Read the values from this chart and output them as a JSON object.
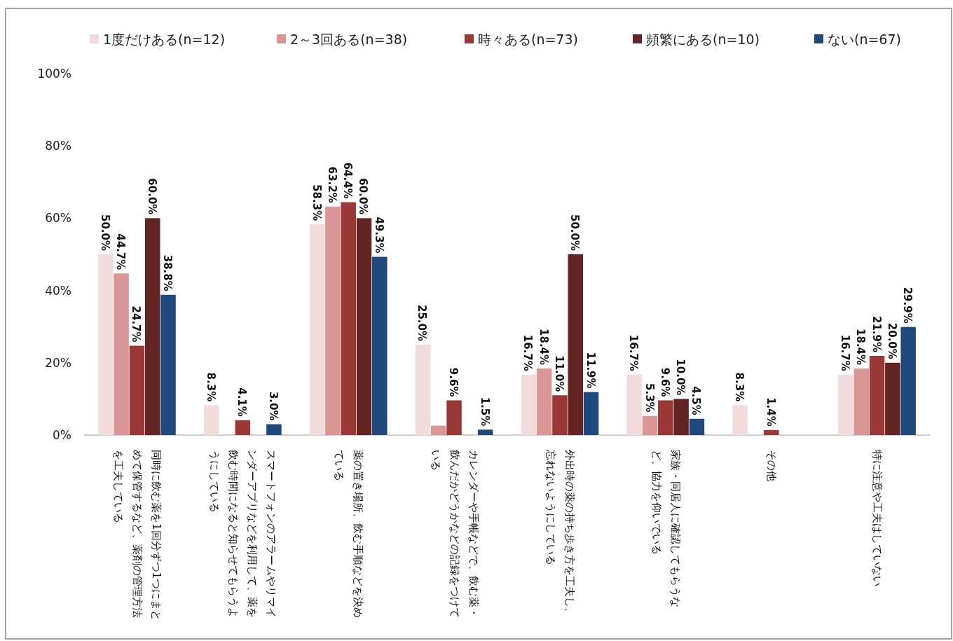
{
  "chart_data": {
    "type": "bar",
    "categories": [
      "同時に飲む薬を1回分ずつ1つにまとめて保管するなど、薬剤の管理方法を工夫している",
      "スマートフォンのアラームやリマインダーアプリなどを利用して、薬を飲む時間になると知らせてもらうようにしている",
      "薬の置き場所、飲む手順などを決めている",
      "カレンダーや手帳などで、飲む薬・飲んだかどうかなどの記録をつけている",
      "外出時の薬の持ち歩き方を工夫し、忘れないようにしている",
      "家族・同居人に確認してもらうなど、協力を仰いでいる",
      "その他",
      "特に注意や工夫はしていない"
    ],
    "series": [
      {
        "name": "1度だけある(n=12)",
        "color": "#f2dcdb",
        "values": [
          50.0,
          8.3,
          58.3,
          25.0,
          16.7,
          16.7,
          8.3,
          16.7
        ],
        "value_labels": [
          "50.0%",
          "8.3%",
          "58.3%",
          "25.0%",
          "16.7%",
          "16.7%",
          "8.3%",
          "16.7%"
        ]
      },
      {
        "name": "2～3回ある(n=38)",
        "color": "#d99694",
        "values": [
          44.7,
          0,
          63.2,
          2.6,
          18.4,
          5.3,
          0,
          18.4
        ],
        "value_labels": [
          "44.7%",
          null,
          "63.2%",
          null,
          "18.4%",
          "5.3%",
          null,
          "18.4%"
        ]
      },
      {
        "name": "時々ある(n=73)",
        "color": "#993836",
        "values": [
          24.7,
          4.1,
          64.4,
          9.6,
          11.0,
          9.6,
          1.4,
          21.9
        ],
        "value_labels": [
          "24.7%",
          "4.1%",
          "64.4%",
          "9.6%",
          "11.0%",
          "9.6%",
          "1.4%",
          "21.9%"
        ]
      },
      {
        "name": "頻繁にある(n=10)",
        "color": "#632523",
        "values": [
          60.0,
          0,
          60.0,
          0,
          50.0,
          10.0,
          0,
          20.0
        ],
        "value_labels": [
          "60.0%",
          null,
          "60.0%",
          null,
          "50.0%",
          "10.0%",
          null,
          "20.0%"
        ]
      },
      {
        "name": "ない(n=67)",
        "color": "#1f497d",
        "values": [
          38.8,
          3.0,
          49.3,
          1.5,
          11.9,
          4.5,
          0,
          29.9
        ],
        "value_labels": [
          "38.8%",
          "3.0%",
          "49.3%",
          "1.5%",
          "11.9%",
          "4.5%",
          null,
          "29.9%"
        ]
      }
    ],
    "ylim": [
      0,
      100
    ],
    "yticks": [
      {
        "value": 0,
        "label": "0%"
      },
      {
        "value": 20,
        "label": "20%"
      },
      {
        "value": 40,
        "label": "40%"
      },
      {
        "value": 60,
        "label": "60%"
      },
      {
        "value": 80,
        "label": "80%"
      },
      {
        "value": 100,
        "label": "100%"
      }
    ],
    "grid": false,
    "legend": "top"
  }
}
